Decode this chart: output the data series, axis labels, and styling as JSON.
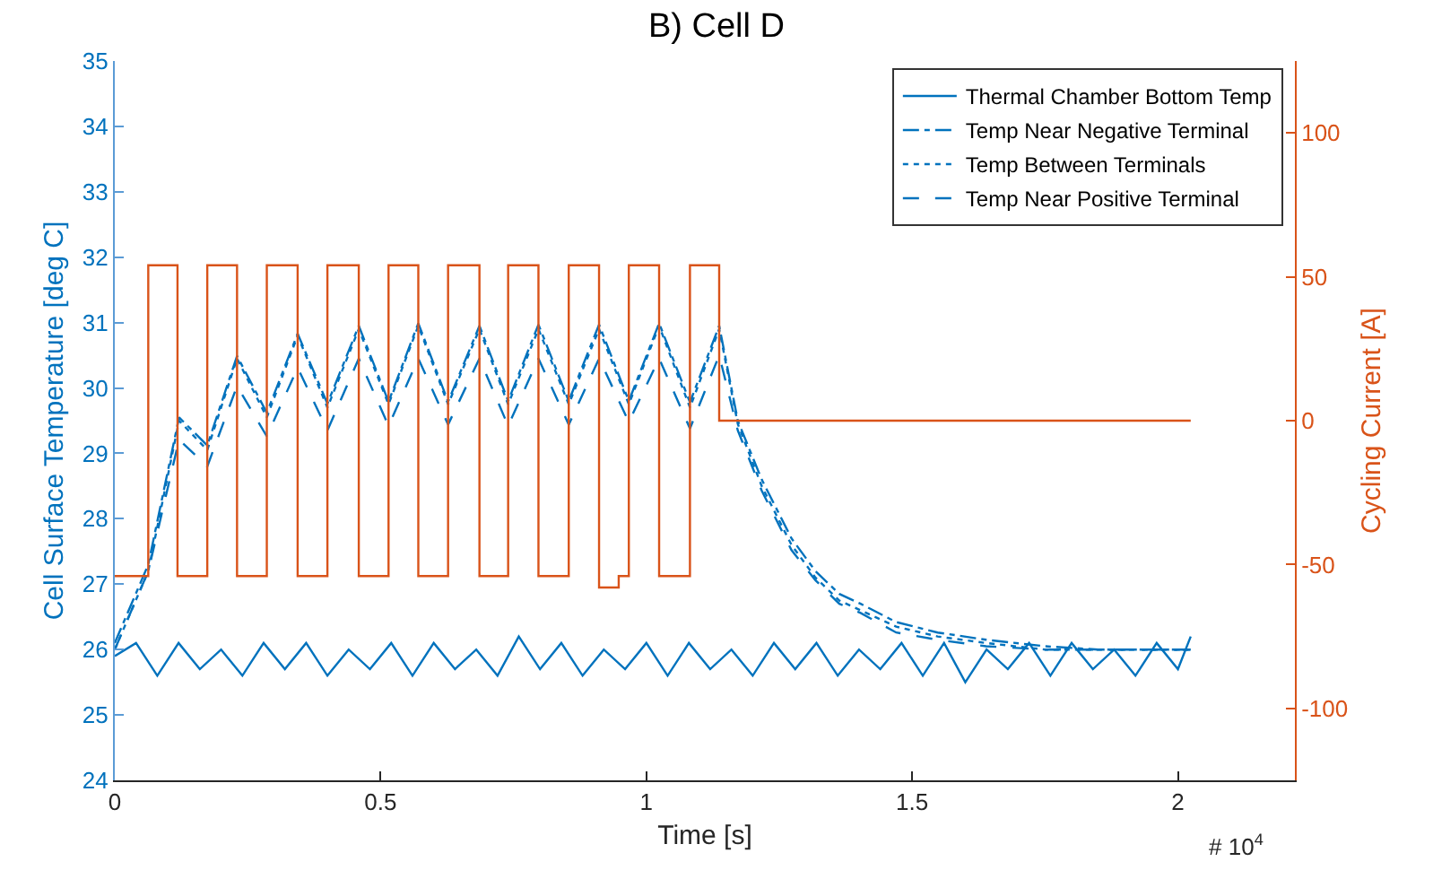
{
  "chart_data": {
    "type": "line",
    "title": "B) Cell D",
    "xlabel": "Time [s]",
    "ylabel": "Cell Surface Temperature [deg C]",
    "y2label": "Cycling Current [A]",
    "annotations": [
      "# 10$^{4}$"
    ],
    "xlim": [
      0,
      2.22
    ],
    "xticks": [
      0,
      0.5,
      1,
      1.5,
      2
    ],
    "ylim": [
      24,
      35
    ],
    "yticks": [
      24,
      25,
      26,
      27,
      28,
      29,
      30,
      31,
      32,
      33,
      34,
      35
    ],
    "y2lim": [
      -125,
      125
    ],
    "y2ticks": [
      -100,
      -50,
      0,
      50,
      100
    ],
    "grid": false,
    "legend": "top right",
    "marker": "none",
    "series": [
      {
        "name": "Thermal Chamber Bottom Temp",
        "color": "#0072bd",
        "line_style": "solid",
        "x": [
          0,
          0.04,
          0.08,
          0.12,
          0.16,
          0.2,
          0.24,
          0.28,
          0.32,
          0.36,
          0.4,
          0.44,
          0.48,
          0.52,
          0.56,
          0.6,
          0.64,
          0.68,
          0.72,
          0.76,
          0.8,
          0.84,
          0.88,
          0.92,
          0.96,
          1.0,
          1.04,
          1.08,
          1.12,
          1.16,
          1.2,
          1.24,
          1.28,
          1.32,
          1.36,
          1.4,
          1.44,
          1.48,
          1.52,
          1.56,
          1.6,
          1.64,
          1.68,
          1.72,
          1.76,
          1.8,
          1.84,
          1.88,
          1.92,
          1.96,
          2.0,
          2.024
        ],
        "values": [
          25.9,
          26.1,
          25.6,
          26.1,
          25.7,
          26.0,
          25.6,
          26.1,
          25.7,
          26.1,
          25.6,
          26.0,
          25.7,
          26.1,
          25.6,
          26.1,
          25.7,
          26.0,
          25.6,
          26.2,
          25.7,
          26.1,
          25.6,
          26.0,
          25.7,
          26.1,
          25.6,
          26.1,
          25.7,
          26.0,
          25.6,
          26.1,
          25.7,
          26.1,
          25.6,
          26.0,
          25.7,
          26.1,
          25.6,
          26.1,
          25.5,
          26.0,
          25.7,
          26.1,
          25.6,
          26.1,
          25.7,
          26.0,
          25.6,
          26.1,
          25.7,
          26.2
        ]
      },
      {
        "name": "Temp Near Negative Terminal",
        "color": "#0072bd",
        "line_style": "dashdot",
        "x": [
          0,
          0.063,
          0.121,
          0.174,
          0.23,
          0.286,
          0.344,
          0.4,
          0.459,
          0.515,
          0.571,
          0.627,
          0.686,
          0.74,
          0.797,
          0.854,
          0.911,
          0.967,
          1.024,
          1.082,
          1.137,
          1.172,
          1.217,
          1.273,
          1.318,
          1.363,
          1.403,
          1.47,
          1.548,
          1.639,
          1.75,
          1.85,
          2.024
        ],
        "values": [
          26.1,
          27.3,
          29.55,
          29.12,
          30.49,
          29.62,
          30.83,
          29.76,
          30.95,
          29.79,
          30.99,
          29.79,
          30.95,
          29.8,
          30.97,
          29.8,
          30.97,
          29.8,
          30.99,
          29.78,
          30.95,
          29.5,
          28.6,
          27.7,
          27.2,
          26.85,
          26.7,
          26.42,
          26.26,
          26.15,
          26.05,
          26.0,
          26.0
        ]
      },
      {
        "name": "Temp Between Terminals",
        "color": "#0072bd",
        "line_style": "dotted",
        "x": [
          0,
          0.063,
          0.121,
          0.174,
          0.23,
          0.286,
          0.344,
          0.4,
          0.459,
          0.515,
          0.571,
          0.627,
          0.686,
          0.74,
          0.797,
          0.854,
          0.911,
          0.967,
          1.024,
          1.082,
          1.137,
          1.172,
          1.217,
          1.273,
          1.318,
          1.363,
          1.403,
          1.47,
          1.548,
          1.639,
          1.75,
          1.85,
          2.024
        ],
        "values": [
          26.0,
          27.2,
          29.5,
          29.05,
          30.45,
          29.55,
          30.8,
          29.7,
          30.9,
          29.75,
          30.95,
          29.75,
          30.9,
          29.75,
          30.9,
          29.75,
          30.9,
          29.75,
          30.95,
          29.7,
          30.9,
          29.45,
          28.5,
          27.6,
          27.1,
          26.75,
          26.6,
          26.35,
          26.2,
          26.1,
          26.0,
          26.0,
          26.0
        ]
      },
      {
        "name": "Temp Near Positive Terminal",
        "color": "#0072bd",
        "line_style": "dashed",
        "x": [
          0,
          0.063,
          0.121,
          0.174,
          0.23,
          0.286,
          0.344,
          0.4,
          0.459,
          0.515,
          0.571,
          0.627,
          0.686,
          0.74,
          0.797,
          0.854,
          0.911,
          0.967,
          1.024,
          1.082,
          1.137,
          1.172,
          1.217,
          1.273,
          1.318,
          1.363,
          1.403,
          1.47,
          1.548,
          1.639,
          1.75,
          1.85,
          2.024
        ],
        "values": [
          26.0,
          27.2,
          29.21,
          28.8,
          30.03,
          29.26,
          30.31,
          29.35,
          30.45,
          29.42,
          30.45,
          29.44,
          30.45,
          29.42,
          30.45,
          29.44,
          30.45,
          29.48,
          30.45,
          29.38,
          30.5,
          29.35,
          28.43,
          27.52,
          27.06,
          26.7,
          26.56,
          26.26,
          26.15,
          26.05,
          26.0,
          26.0,
          26.0
        ]
      },
      {
        "type": "step",
        "axis": "y2",
        "color": "#d95319",
        "line_style": "solid",
        "x": [
          0,
          0.063,
          0.118,
          0.174,
          0.23,
          0.286,
          0.344,
          0.4,
          0.459,
          0.515,
          0.571,
          0.627,
          0.686,
          0.74,
          0.797,
          0.854,
          0.911,
          0.948,
          0.967,
          1.024,
          1.082,
          1.137,
          2.024
        ],
        "values": [
          -54,
          54,
          -54,
          54,
          -54,
          54,
          -54,
          54,
          -54,
          54,
          -54,
          54,
          -54,
          54,
          -54,
          54,
          -58,
          -54,
          54,
          -54,
          54,
          0,
          0
        ]
      }
    ]
  }
}
